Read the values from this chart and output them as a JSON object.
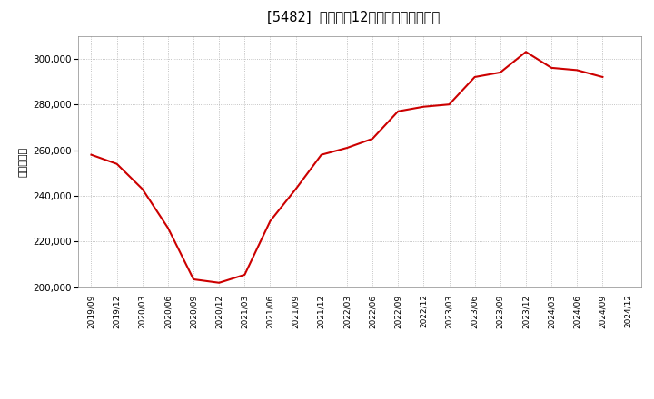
{
  "title": "[5482]  売上高の12か月移動合計の推移",
  "ylabel": "（百万円）",
  "line_color": "#cc0000",
  "background_color": "#ffffff",
  "plot_bg_color": "#ffffff",
  "grid_color": "#aaaaaa",
  "ylim": [
    200000,
    310000
  ],
  "yticks": [
    200000,
    220000,
    240000,
    260000,
    280000,
    300000
  ],
  "x_labels": [
    "2019/09",
    "2019/12",
    "2020/03",
    "2020/06",
    "2020/09",
    "2020/12",
    "2021/03",
    "2021/06",
    "2021/09",
    "2021/12",
    "2022/03",
    "2022/06",
    "2022/09",
    "2022/12",
    "2023/03",
    "2023/06",
    "2023/09",
    "2023/12",
    "2024/03",
    "2024/06",
    "2024/09",
    "2024/12"
  ],
  "data": [
    [
      "2019/09",
      258000
    ],
    [
      "2019/12",
      254000
    ],
    [
      "2020/03",
      243000
    ],
    [
      "2020/06",
      226000
    ],
    [
      "2020/09",
      203500
    ],
    [
      "2020/12",
      202000
    ],
    [
      "2021/03",
      205500
    ],
    [
      "2021/06",
      229000
    ],
    [
      "2021/09",
      243000
    ],
    [
      "2021/12",
      258000
    ],
    [
      "2022/03",
      261000
    ],
    [
      "2022/06",
      265000
    ],
    [
      "2022/09",
      277000
    ],
    [
      "2022/12",
      279000
    ],
    [
      "2023/03",
      280000
    ],
    [
      "2023/06",
      292000
    ],
    [
      "2023/09",
      294000
    ],
    [
      "2023/12",
      303000
    ],
    [
      "2024/03",
      296000
    ],
    [
      "2024/06",
      295000
    ],
    [
      "2024/09",
      292000
    ]
  ]
}
